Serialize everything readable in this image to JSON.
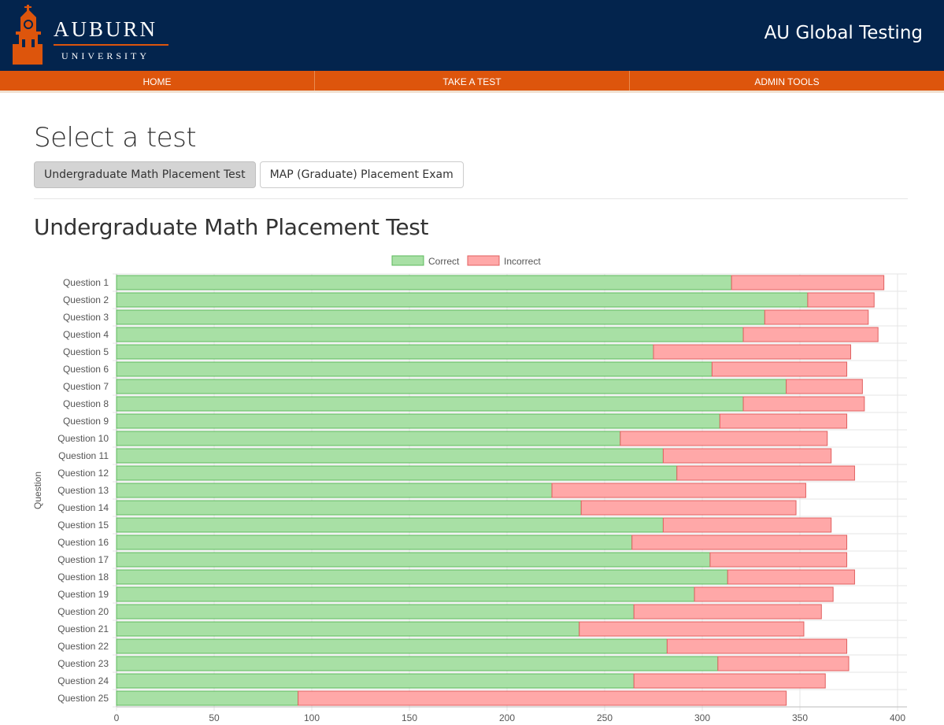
{
  "header": {
    "logo_word1": "AUBURN",
    "logo_word2": "UNIVERSITY",
    "site_title": "AU Global Testing"
  },
  "nav": {
    "items": [
      "HOME",
      "TAKE A TEST",
      "ADMIN TOOLS"
    ]
  },
  "main": {
    "title": "Select a test",
    "tabs": [
      {
        "label": "Undergraduate Math Placement Test",
        "active": true
      },
      {
        "label": "MAP (Graduate) Placement Exam",
        "active": false
      }
    ],
    "section_title": "Undergraduate Math Placement Test"
  },
  "colors": {
    "header_bg": "#03244d",
    "nav_bg": "#dd550c",
    "correct": "#a8e0a5",
    "correct_border": "#5cb85c",
    "incorrect": "#ffa8a8",
    "incorrect_border": "#e06060"
  },
  "chart_data": {
    "type": "bar",
    "orientation": "horizontal",
    "stacked": true,
    "ylabel": "Question",
    "xlabel": "",
    "xlim": [
      0,
      400
    ],
    "x_ticks": [
      0,
      50,
      100,
      150,
      200,
      250,
      300,
      350,
      400
    ],
    "legend_position": "top-center",
    "categories": [
      "Question 1",
      "Question 2",
      "Question 3",
      "Question 4",
      "Question 5",
      "Question 6",
      "Question 7",
      "Question 8",
      "Question 9",
      "Question 10",
      "Question 11",
      "Question 12",
      "Question 13",
      "Question 14",
      "Question 15",
      "Question 16",
      "Question 17",
      "Question 18",
      "Question 19",
      "Question 20",
      "Question 21",
      "Question 22",
      "Question 23",
      "Question 24",
      "Question 25"
    ],
    "series": [
      {
        "name": "Correct",
        "values": [
          315,
          354,
          332,
          321,
          275,
          305,
          343,
          321,
          309,
          258,
          280,
          287,
          223,
          238,
          280,
          264,
          304,
          313,
          296,
          265,
          237,
          282,
          308,
          265,
          93
        ]
      },
      {
        "name": "Incorrect",
        "values": [
          78,
          34,
          53,
          69,
          101,
          69,
          39,
          62,
          65,
          106,
          86,
          91,
          130,
          110,
          86,
          110,
          70,
          65,
          71,
          96,
          115,
          92,
          67,
          98,
          250
        ]
      }
    ]
  }
}
